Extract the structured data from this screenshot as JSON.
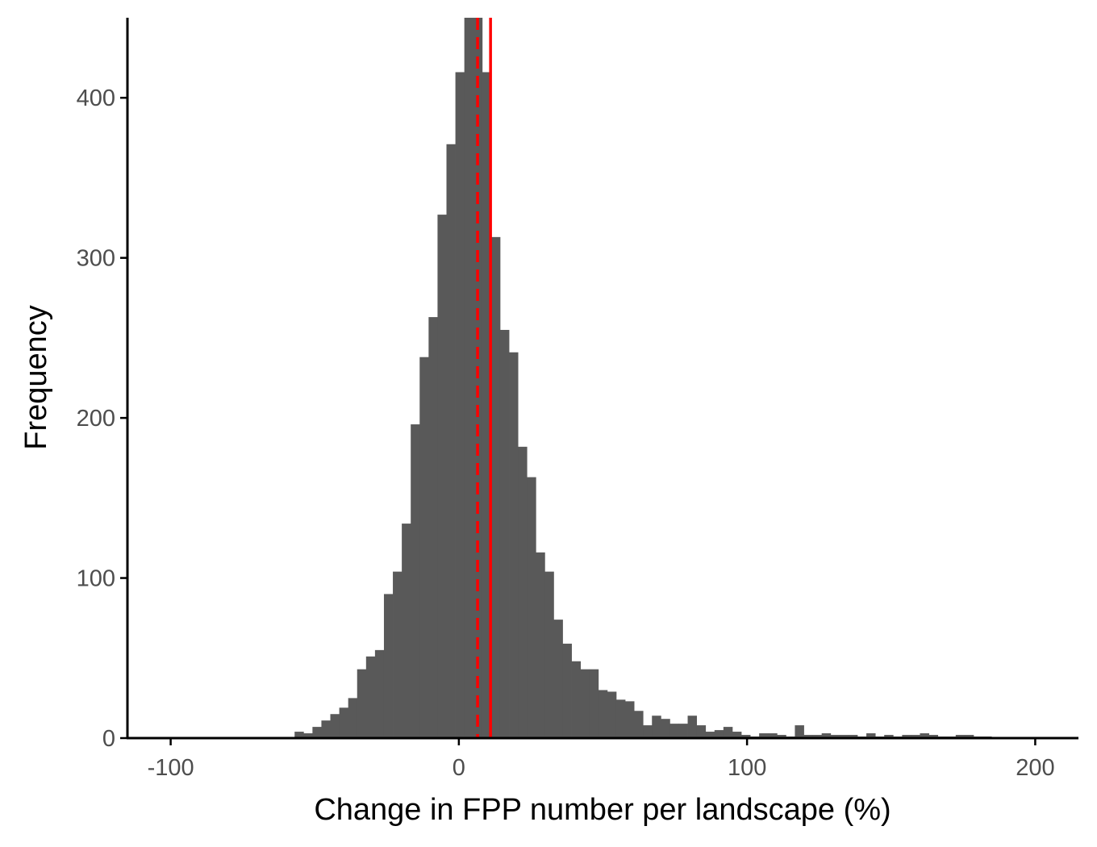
{
  "chart_data": {
    "type": "bar",
    "xlabel": "Change in FPP number per landscape (%)",
    "ylabel": "Frequency",
    "xlim": [
      -115,
      215
    ],
    "ylim": [
      0,
      450
    ],
    "x_ticks": [
      -100,
      0,
      100,
      200
    ],
    "x_tick_labels": [
      "-100",
      "0",
      "100",
      "200"
    ],
    "y_ticks": [
      0,
      100,
      200,
      300,
      400
    ],
    "y_tick_labels": [
      "0",
      "100",
      "200",
      "300",
      "400"
    ],
    "bin_width": 3.1,
    "bin_start": -57.0,
    "counts": [
      4,
      3,
      7,
      11,
      15,
      19,
      25,
      43,
      51,
      55,
      90,
      104,
      134,
      196,
      238,
      263,
      327,
      371,
      416,
      452,
      452,
      416,
      313,
      255,
      241,
      182,
      163,
      116,
      104,
      74,
      59,
      48,
      43,
      43,
      30,
      29,
      24,
      23,
      17,
      8,
      14,
      12,
      9,
      9,
      14,
      8,
      4,
      5,
      7,
      4,
      2,
      1,
      3,
      3,
      2,
      1,
      8,
      2,
      2,
      3,
      2,
      2,
      2,
      1,
      3,
      1,
      2,
      1,
      2,
      2,
      3,
      2,
      1,
      1,
      2,
      2,
      1,
      1
    ],
    "grid": false,
    "legend": "none",
    "reference_lines": [
      {
        "x": 6.5,
        "style": "dashed",
        "color": "#ff0000"
      },
      {
        "x": 11.0,
        "style": "solid",
        "color": "#ff0000"
      }
    ],
    "bar_color": "#595959"
  }
}
